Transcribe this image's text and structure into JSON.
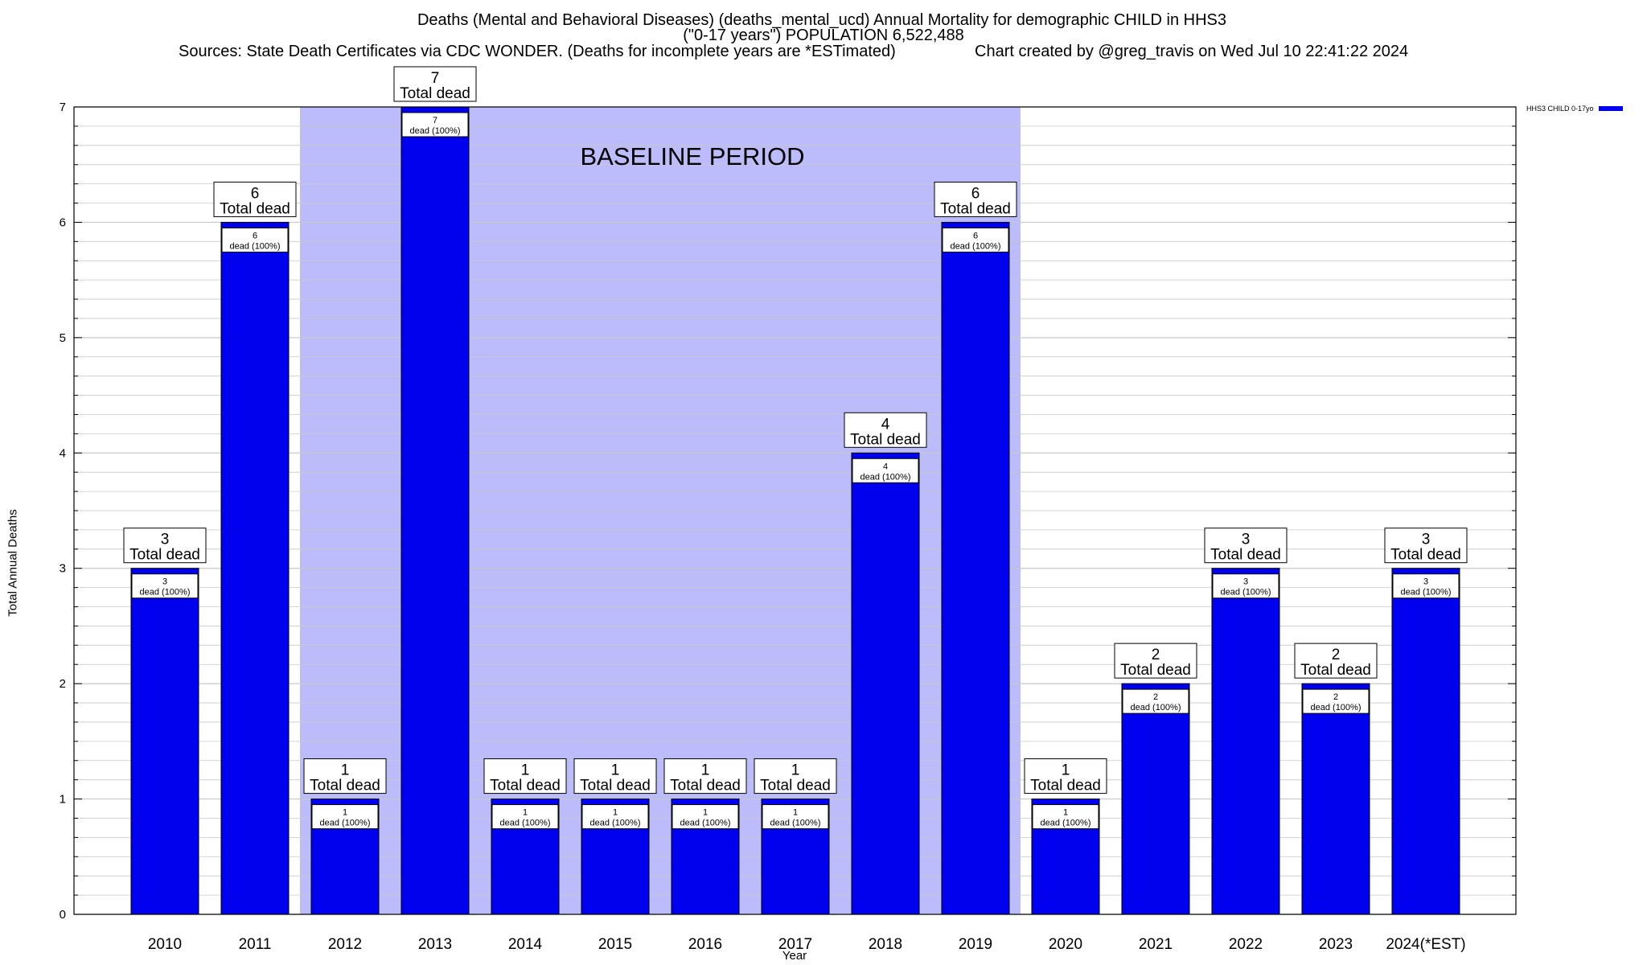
{
  "header": {
    "title": "Deaths (Mental and Behavioral Diseases) (deaths_mental_ucd) Annual Mortality for demographic CHILD in HHS3",
    "subtitle": "(\"0-17 years\") POPULATION 6,522,488",
    "sources": "Sources: State Death Certificates via CDC WONDER. (Deaths for incomplete years are *ESTimated)",
    "credit": "Chart created by @greg_travis on Wed Jul 10 22:41:22 2024"
  },
  "chart_data": {
    "type": "bar",
    "categories": [
      "2010",
      "2011",
      "2012",
      "2013",
      "2014",
      "2015",
      "2016",
      "2017",
      "2018",
      "2019",
      "2020",
      "2021",
      "2022",
      "2023",
      "2024(*EST)"
    ],
    "series": [
      {
        "name": "HHS3 CHILD 0-17yo",
        "values": [
          3,
          6,
          1,
          7,
          1,
          1,
          1,
          1,
          4,
          6,
          1,
          2,
          3,
          2,
          3
        ]
      }
    ],
    "xlabel": "Year",
    "ylabel": "Total Annual Deaths",
    "ylim": [
      0,
      7
    ],
    "yticks": [
      0,
      1,
      2,
      3,
      4,
      5,
      6,
      7
    ],
    "grid": true,
    "legend_position": "top-right",
    "bar_label_text": "Total dead",
    "inner_label_text": "dead (100%)",
    "baseline_period": {
      "label": "BASELINE PERIOD",
      "start": "2012",
      "end": "2019"
    },
    "colors": {
      "bar": "#0000ee",
      "baseline_fill": "#bcbcfb",
      "grid": "#c8c8c8"
    }
  }
}
